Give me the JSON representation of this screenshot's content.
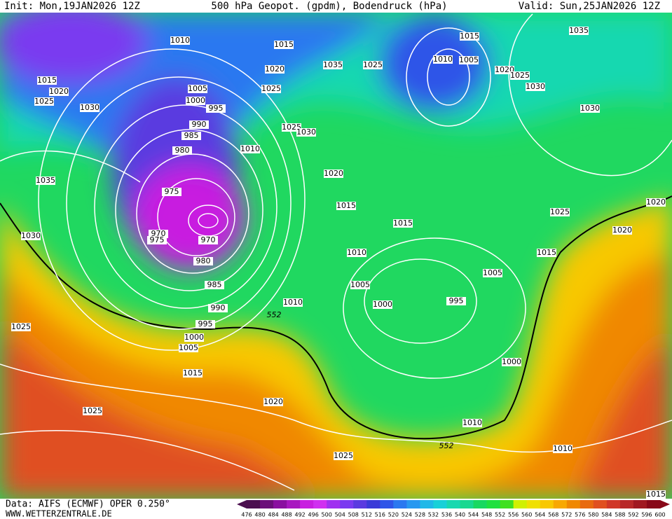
{
  "header": {
    "init": "Init: Mon,19JAN2026 12Z",
    "title": "500 hPa Geopot. (gpdm), Bodendruck (hPa)",
    "valid": "Valid: Sun,25JAN2026 12Z"
  },
  "map": {
    "isobar_labels": [
      "1010",
      "1015",
      "1015",
      "1035",
      "1010",
      "1005",
      "1035",
      "1025",
      "1020",
      "1020",
      "1025",
      "1015",
      "1020",
      "1025",
      "1005",
      "1025",
      "1030",
      "1000",
      "995",
      "1030",
      "1030",
      "990",
      "1025",
      "1030",
      "985",
      "980",
      "1010",
      "1020",
      "1035",
      "975",
      "1015",
      "1020",
      "1025",
      "970",
      "975",
      "970",
      "1030",
      "1015",
      "1020",
      "1010",
      "1015",
      "980",
      "1005",
      "985",
      "1005",
      "1010",
      "1000",
      "995",
      "990",
      "552",
      "995",
      "1025",
      "1000",
      "1005",
      "1000",
      "1015",
      "1020",
      "1025",
      "1010",
      "552",
      "1010",
      "1025",
      "1015"
    ]
  },
  "colorbar": {
    "ticks": [
      476,
      480,
      484,
      488,
      492,
      496,
      500,
      504,
      508,
      512,
      516,
      520,
      524,
      528,
      532,
      536,
      540,
      544,
      548,
      552,
      556,
      560,
      564,
      568,
      572,
      576,
      580,
      584,
      588,
      592,
      596,
      600
    ],
    "colors": [
      "#4b0f4f",
      "#6b0f7a",
      "#8a0fa0",
      "#a818c0",
      "#c81fe0",
      "#d02ff0",
      "#a030f0",
      "#7a3af0",
      "#5a3ae0",
      "#3a3ad8",
      "#2f55e8",
      "#2a78f0",
      "#2898f0",
      "#20b8e8",
      "#18d0d8",
      "#18d8b0",
      "#18d890",
      "#18d860",
      "#20e040",
      "#40e020",
      "#d0f000",
      "#f0e000",
      "#f8c800",
      "#f8a800",
      "#f08800",
      "#e86a10",
      "#e05020",
      "#d03828",
      "#b82828",
      "#a01820",
      "#880818"
    ]
  },
  "footer": {
    "source": "Data: AIFS (ECMWF) OPER 0.250°",
    "site": "WWW.WETTERZENTRALE.DE"
  }
}
